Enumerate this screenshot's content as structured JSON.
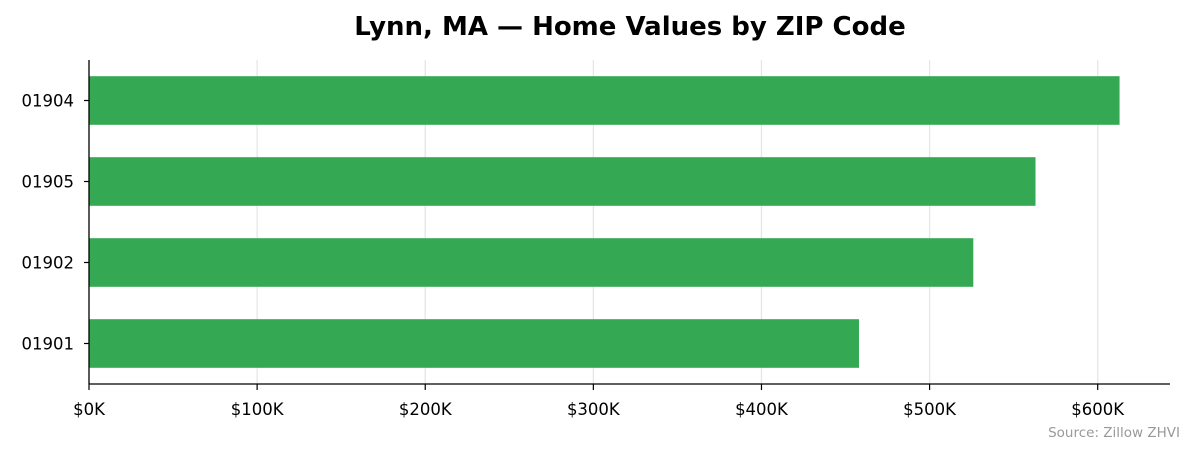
{
  "chart_data": {
    "type": "bar",
    "orientation": "horizontal",
    "title": "Lynn, MA — Home Values by ZIP Code",
    "categories": [
      "01904",
      "01905",
      "01902",
      "01901"
    ],
    "values": [
      613000,
      563000,
      526000,
      458000
    ],
    "xlim": [
      0,
      643000
    ],
    "xticks": [
      0,
      100000,
      200000,
      300000,
      400000,
      500000,
      600000
    ],
    "xtick_labels": [
      "$0K",
      "$100K",
      "$200K",
      "$300K",
      "$400K",
      "$500K",
      "$600K"
    ],
    "xlabel": "",
    "ylabel": "",
    "grid": "vertical",
    "bar_color": "#34a853",
    "grid_color": "#e6e6e6",
    "source_note": "Source: Zillow ZHVI"
  }
}
